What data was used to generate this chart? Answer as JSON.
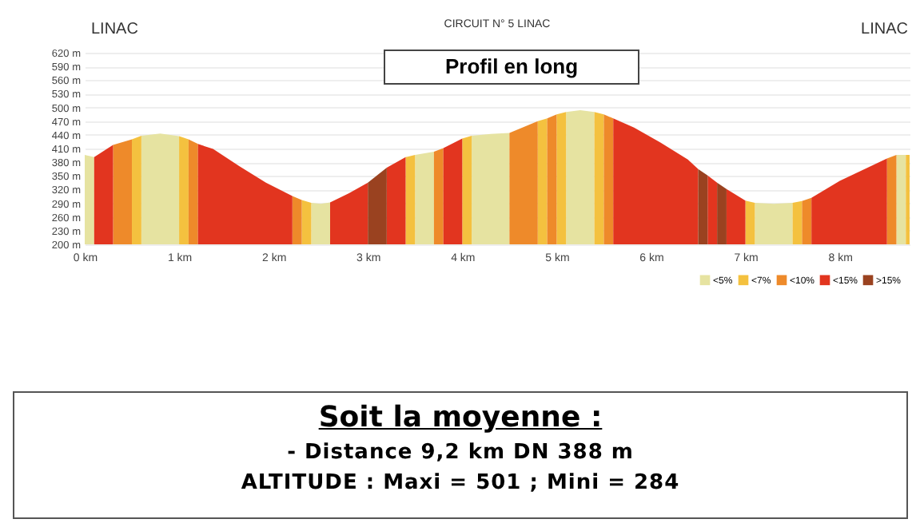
{
  "chart_data": {
    "type": "area",
    "title": "CIRCUIT N° 5 LINAC",
    "subtitle": "Profil en long",
    "annotations": [
      "LINAC",
      "LINAC",
      "Soit la moyenne :",
      "- Distance 9,2 km DN 388 m",
      "ALTITUDE : Maxi = 501 ; Mini = 284"
    ],
    "xlim": [
      0,
      8.74
    ],
    "ylim": [
      200,
      620
    ],
    "xticks": [
      {
        "value": 0,
        "label": "0 km"
      },
      {
        "value": 1,
        "label": "1 km"
      },
      {
        "value": 2,
        "label": "2 km"
      },
      {
        "value": 3,
        "label": "3 km"
      },
      {
        "value": 4,
        "label": "4 km"
      },
      {
        "value": 5,
        "label": "5 km"
      },
      {
        "value": 6,
        "label": "6 km"
      },
      {
        "value": 7,
        "label": "7 km"
      },
      {
        "value": 8,
        "label": "8 km"
      }
    ],
    "yticks": [
      {
        "value": 200,
        "label": "200 m"
      },
      {
        "value": 230,
        "label": "230 m"
      },
      {
        "value": 260,
        "label": "260 m"
      },
      {
        "value": 290,
        "label": "290 m"
      },
      {
        "value": 320,
        "label": "320 m"
      },
      {
        "value": 350,
        "label": "350 m"
      },
      {
        "value": 380,
        "label": "380 m"
      },
      {
        "value": 410,
        "label": "410 m"
      },
      {
        "value": 440,
        "label": "440 m"
      },
      {
        "value": 470,
        "label": "470 m"
      },
      {
        "value": 500,
        "label": "500 m"
      },
      {
        "value": 530,
        "label": "530 m"
      },
      {
        "value": 560,
        "label": "560 m"
      },
      {
        "value": 590,
        "label": "590 m"
      },
      {
        "value": 620,
        "label": "620 m"
      }
    ],
    "grid": "y",
    "legend": "bottom right",
    "series": [
      {
        "name": "<5%",
        "color": "#e6e3a1",
        "x": [
          0,
          0.1,
          null,
          0.6,
          0.8,
          1.0,
          null,
          2.4,
          2.5,
          2.6,
          null,
          3.5,
          3.7,
          null,
          4.1,
          4.3,
          4.5,
          null,
          5.1,
          5.25,
          5.4,
          null,
          7.1,
          7.3,
          7.5,
          null,
          8.6,
          8.7
        ],
        "values": [
          396,
          391,
          null,
          438,
          443,
          437,
          null,
          291,
          289,
          292,
          null,
          396,
          403,
          null,
          438,
          442,
          444,
          null,
          490,
          494,
          490,
          null,
          291,
          289,
          291,
          null,
          396,
          396
        ]
      },
      {
        "name": "<7%",
        "color": "#f4c13f",
        "x": [
          0.5,
          0.6,
          null,
          1.0,
          1.1,
          null,
          2.3,
          2.4,
          null,
          3.4,
          3.5,
          null,
          4.0,
          4.1,
          null,
          4.8,
          4.9,
          null,
          5.0,
          5.1,
          null,
          5.4,
          5.5,
          null,
          7.0,
          7.1,
          null,
          7.5,
          7.6,
          null,
          8.7,
          8.74
        ],
        "values": [
          430,
          438,
          null,
          437,
          430,
          null,
          297,
          291,
          null,
          391,
          396,
          null,
          432,
          438,
          null,
          470,
          476,
          null,
          485,
          490,
          null,
          490,
          485,
          null,
          296,
          291,
          null,
          291,
          295,
          null,
          396,
          396
        ]
      },
      {
        "name": "<10%",
        "color": "#ee8a2a",
        "x": [
          0.3,
          0.5,
          null,
          1.1,
          1.2,
          null,
          2.2,
          2.3,
          null,
          3.7,
          3.8,
          null,
          4.5,
          4.8,
          null,
          4.9,
          5.0,
          null,
          5.5,
          5.6,
          null,
          7.6,
          7.7,
          null,
          8.5,
          8.6
        ],
        "values": [
          418,
          430,
          null,
          430,
          420,
          null,
          306,
          297,
          null,
          403,
          411,
          null,
          444,
          470,
          null,
          476,
          485,
          null,
          485,
          476,
          null,
          295,
          302,
          null,
          388,
          396
        ]
      },
      {
        "name": "<15%",
        "color": "#e2351f",
        "x": [
          0.1,
          0.3,
          null,
          1.2,
          1.36,
          1.64,
          1.92,
          2.2,
          null,
          2.6,
          2.8,
          3.0,
          null,
          3.2,
          3.4,
          null,
          3.8,
          4.0,
          null,
          5.6,
          5.82,
          6.1,
          6.39,
          6.5,
          null,
          6.6,
          6.7,
          null,
          6.8,
          7.0,
          null,
          7.7,
          8.0,
          8.5
        ],
        "values": [
          391,
          418,
          null,
          420,
          409,
          371,
          335,
          306,
          null,
          292,
          312,
          335,
          null,
          368,
          391,
          null,
          411,
          432,
          null,
          476,
          456,
          423,
          386,
          365,
          null,
          351,
          335,
          null,
          321,
          296,
          null,
          302,
          339,
          388
        ]
      },
      {
        "name": ">15%",
        "color": "#9a4220",
        "x": [
          3.0,
          3.2,
          null,
          6.5,
          6.6,
          null,
          6.7,
          6.8
        ],
        "values": [
          335,
          368,
          null,
          365,
          351,
          null,
          335,
          321
        ]
      }
    ]
  }
}
